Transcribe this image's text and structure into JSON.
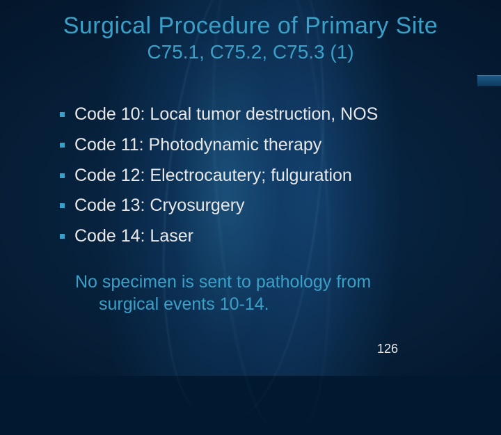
{
  "colors": {
    "title": "#3aa0c8",
    "subtitle": "#3aa0c8",
    "body_text": "#e8e8e8",
    "bullet_marker": "#3aa0c8",
    "note_text": "#3aa0c8",
    "page_number": "#e8e8e8"
  },
  "title": "Surgical Procedure of Primary Site",
  "subtitle": "C75.1, C75.2, C75.3 (1)",
  "bullets": [
    "Code 10: Local tumor destruction, NOS",
    "Code 11: Photodynamic therapy",
    "Code 12: Electrocautery; fulguration",
    "Code 13: Cryosurgery",
    "Code 14: Laser"
  ],
  "note_line1": "No specimen is sent to pathology from",
  "note_line2": "surgical events 10-14.",
  "page_number": "126"
}
